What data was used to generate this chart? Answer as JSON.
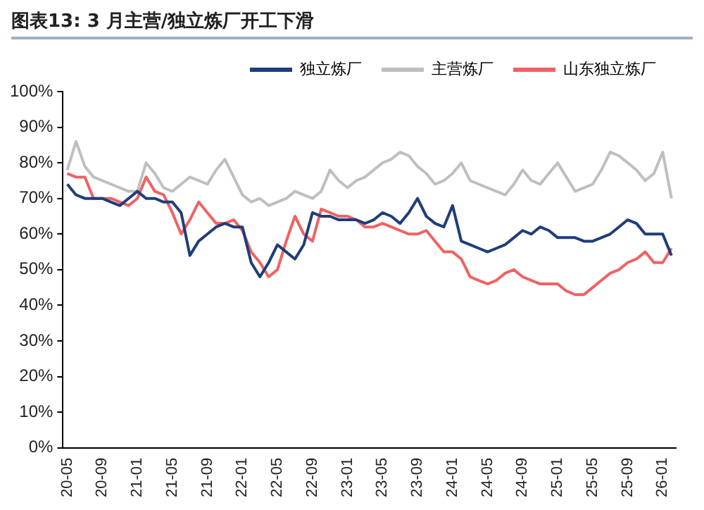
{
  "chart_data": {
    "type": "line",
    "title": "图表13:  3 月主营/独立炼厂开工下滑",
    "categories": [
      "20-05",
      null,
      null,
      null,
      "20-09",
      null,
      null,
      null,
      "21-01",
      null,
      null,
      null,
      "21-05",
      null,
      null,
      null,
      "21-09",
      null,
      null,
      null,
      "22-01",
      null,
      null,
      null,
      "22-05",
      null,
      null,
      null,
      "22-09",
      null,
      null,
      null,
      "23-01",
      null,
      null,
      null,
      "23-05",
      null,
      null,
      null,
      "23-09",
      null,
      null,
      null,
      "24-01",
      null,
      null,
      null,
      "24-05",
      null,
      null,
      null,
      "24-09",
      null,
      null,
      null,
      "25-01",
      null,
      null,
      null,
      "25-05",
      null,
      null,
      null,
      "25-09",
      null,
      null,
      null,
      "26-01",
      null
    ],
    "series": [
      {
        "name": "独立炼厂",
        "color": "#1f3d7a",
        "values": [
          74,
          71,
          70,
          70,
          70,
          69,
          68,
          70,
          72,
          70,
          70,
          69,
          69,
          66,
          54,
          58,
          60,
          62,
          63,
          62,
          62,
          52,
          48,
          52,
          57,
          55,
          53,
          57,
          66,
          65,
          65,
          64,
          64,
          64,
          63,
          64,
          66,
          65,
          63,
          66,
          70,
          65,
          63,
          62,
          68,
          58,
          57,
          56,
          55,
          56,
          57,
          59,
          61,
          60,
          62,
          61,
          59,
          59,
          59,
          58,
          58,
          59,
          60,
          62,
          64,
          63,
          60,
          60,
          60,
          54
        ]
      },
      {
        "name": "主营炼厂",
        "color": "#bfbfbf",
        "values": [
          78,
          86,
          79,
          76,
          75,
          74,
          73,
          72,
          72,
          80,
          77,
          73,
          72,
          74,
          76,
          75,
          74,
          78,
          81,
          76,
          71,
          69,
          70,
          68,
          69,
          70,
          72,
          71,
          70,
          72,
          78,
          75,
          73,
          75,
          76,
          78,
          80,
          81,
          83,
          82,
          79,
          77,
          74,
          75,
          77,
          80,
          75,
          74,
          73,
          72,
          71,
          74,
          78,
          75,
          74,
          77,
          80,
          76,
          72,
          73,
          74,
          78,
          83,
          82,
          80,
          78,
          75,
          77,
          83,
          70
        ]
      },
      {
        "name": "山东独立炼厂",
        "color": "#f06262",
        "values": [
          77,
          76,
          76,
          70,
          70,
          70,
          69,
          68,
          70,
          76,
          72,
          71,
          66,
          60,
          64,
          69,
          66,
          63,
          63,
          64,
          61,
          55,
          52,
          48,
          50,
          58,
          65,
          60,
          58,
          67,
          66,
          65,
          65,
          64,
          62,
          62,
          63,
          62,
          61,
          60,
          60,
          61,
          58,
          55,
          55,
          53,
          48,
          47,
          46,
          47,
          49,
          50,
          48,
          47,
          46,
          46,
          46,
          44,
          43,
          43,
          45,
          47,
          49,
          50,
          52,
          53,
          55,
          52,
          52,
          56
        ]
      }
    ],
    "ylim": [
      0,
      100
    ],
    "yticks": [
      {
        "value": 0,
        "label": "0%"
      },
      {
        "value": 10,
        "label": "10%"
      },
      {
        "value": 20,
        "label": "20%"
      },
      {
        "value": 30,
        "label": "30%"
      },
      {
        "value": 40,
        "label": "40%"
      },
      {
        "value": 50,
        "label": "50%"
      },
      {
        "value": 60,
        "label": "60%"
      },
      {
        "value": 70,
        "label": "70%"
      },
      {
        "value": 80,
        "label": "80%"
      },
      {
        "value": 90,
        "label": "90%"
      },
      {
        "value": 100,
        "label": "100%"
      }
    ],
    "grid": false,
    "legend": "top",
    "marker": "none",
    "line_style": "solid"
  }
}
